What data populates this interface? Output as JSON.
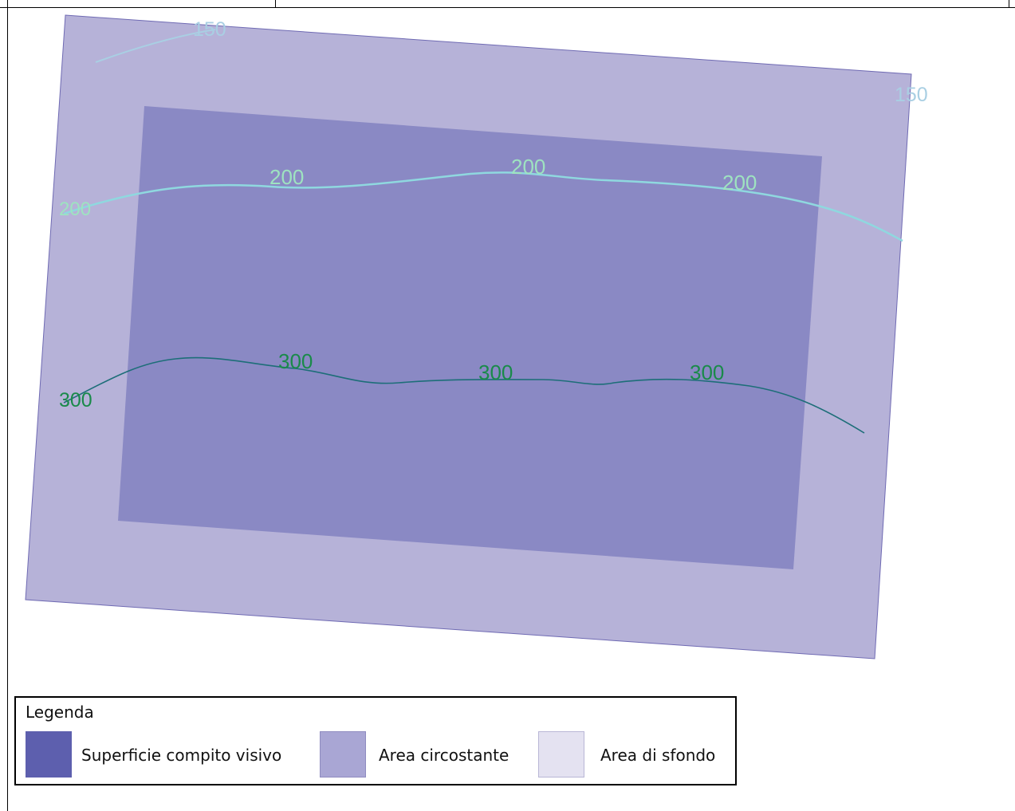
{
  "diagram": {
    "contours": [
      {
        "id": "c150",
        "value": "150",
        "color": "#a9cfe3",
        "labels": [
          "150",
          "150"
        ]
      },
      {
        "id": "c200",
        "value": "200",
        "color": "#8fd8df",
        "label_color": "#9ee3c0",
        "labels": [
          "200",
          "200",
          "200",
          "200"
        ]
      },
      {
        "id": "c300",
        "value": "300",
        "color": "#1d6e78",
        "label_color": "#1a8a4a",
        "labels": [
          "300",
          "300",
          "300",
          "300"
        ]
      }
    ],
    "colors": {
      "outer_area": "#b6b2d8",
      "inner_area": "#8a89c4",
      "border": "#6f6ab3"
    }
  },
  "legend": {
    "title": "Legenda",
    "items": [
      {
        "label": "Superficie compito visivo",
        "color": "#5d5fae"
      },
      {
        "label": "Area circostante",
        "color": "#a9a6d4"
      },
      {
        "label": "Area di sfondo",
        "color": "#e4e2f1"
      }
    ]
  }
}
